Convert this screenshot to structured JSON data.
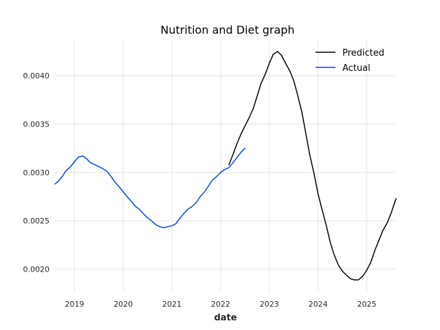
{
  "chart_data": {
    "type": "line",
    "title": "Nutrition and Diet graph",
    "xlabel": "date",
    "ylabel": "",
    "xlim": [
      2018.6,
      2025.6
    ],
    "ylim": [
      0.00177,
      0.00437
    ],
    "x_ticks": [
      2019,
      2020,
      2021,
      2022,
      2023,
      2024,
      2025
    ],
    "x_tick_labels": [
      "2019",
      "2020",
      "2021",
      "2022",
      "2023",
      "2024",
      "2025"
    ],
    "y_ticks": [
      0.002,
      0.0025,
      0.003,
      0.0035,
      0.004
    ],
    "y_tick_labels": [
      "0.0020",
      "0.0025",
      "0.0030",
      "0.0035",
      "0.0040"
    ],
    "grid": true,
    "legend": "top-right",
    "series": [
      {
        "name": "Predicted",
        "color": "#000000",
        "x": [
          2022.17,
          2022.25,
          2022.33,
          2022.42,
          2022.5,
          2022.58,
          2022.67,
          2022.75,
          2022.83,
          2022.92,
          2023.0,
          2023.08,
          2023.17,
          2023.25,
          2023.33,
          2023.42,
          2023.5,
          2023.58,
          2023.67,
          2023.75,
          2023.83,
          2023.92,
          2024.0,
          2024.08,
          2024.17,
          2024.25,
          2024.33,
          2024.42,
          2024.5,
          2024.58,
          2024.67,
          2024.75,
          2024.83,
          2024.92,
          2025.0,
          2025.08,
          2025.17,
          2025.25,
          2025.33,
          2025.42,
          2025.5,
          2025.6
        ],
        "values": [
          0.00308,
          0.00318,
          0.00329,
          0.0034,
          0.00348,
          0.00356,
          0.00366,
          0.00379,
          0.00392,
          0.00402,
          0.00413,
          0.00422,
          0.00425,
          0.00421,
          0.00413,
          0.00405,
          0.00395,
          0.0038,
          0.00362,
          0.0034,
          0.00318,
          0.00298,
          0.00278,
          0.00262,
          0.00245,
          0.00228,
          0.00215,
          0.00204,
          0.00198,
          0.00194,
          0.0019,
          0.00189,
          0.00189,
          0.00193,
          0.00199,
          0.00207,
          0.0022,
          0.0023,
          0.0024,
          0.00248,
          0.00258,
          0.00273
        ]
      },
      {
        "name": "Actual",
        "color": "#0342f9",
        "x": [
          2018.6,
          2018.67,
          2018.75,
          2018.83,
          2018.92,
          2019.0,
          2019.08,
          2019.17,
          2019.25,
          2019.33,
          2019.42,
          2019.5,
          2019.58,
          2019.67,
          2019.75,
          2019.83,
          2019.92,
          2020.0,
          2020.08,
          2020.17,
          2020.25,
          2020.33,
          2020.42,
          2020.5,
          2020.58,
          2020.67,
          2020.75,
          2020.83,
          2020.92,
          2021.0,
          2021.08,
          2021.17,
          2021.25,
          2021.33,
          2021.42,
          2021.5,
          2021.58,
          2021.67,
          2021.75,
          2021.83,
          2021.92,
          2022.0,
          2022.08,
          2022.17,
          2022.25,
          2022.33,
          2022.42,
          2022.5
        ],
        "values": [
          0.00288,
          0.00291,
          0.00296,
          0.00302,
          0.00306,
          0.00311,
          0.00316,
          0.00317,
          0.00314,
          0.0031,
          0.00308,
          0.00306,
          0.00304,
          0.00301,
          0.00296,
          0.0029,
          0.00285,
          0.0028,
          0.00275,
          0.0027,
          0.00265,
          0.00262,
          0.00257,
          0.00253,
          0.0025,
          0.00246,
          0.00244,
          0.00243,
          0.00244,
          0.00245,
          0.00247,
          0.00253,
          0.00258,
          0.00262,
          0.00265,
          0.00269,
          0.00275,
          0.0028,
          0.00286,
          0.00292,
          0.00296,
          0.003,
          0.00303,
          0.00305,
          0.0031,
          0.00315,
          0.00321,
          0.00325
        ]
      }
    ]
  }
}
